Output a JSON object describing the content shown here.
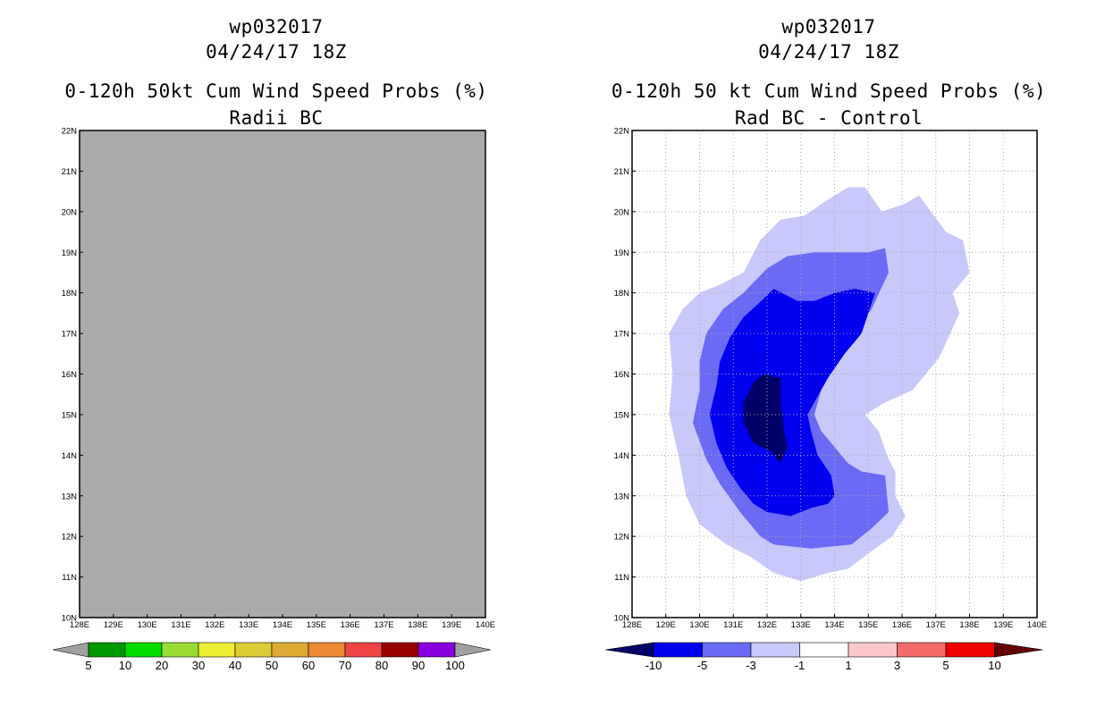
{
  "panels": {
    "left": {
      "storm_id": "wp032017",
      "datetime": "04/24/17 18Z",
      "title": "0-120h 50kt Cum Wind Speed Probs (%)",
      "subtitle": "Radii BC"
    },
    "right": {
      "storm_id": "wp032017",
      "datetime": "04/24/17 18Z",
      "title": "0-120h 50 kt Cum Wind Speed Probs (%)",
      "subtitle": "Rad BC - Control"
    }
  },
  "colors": {
    "left_fill": "#aaaaaa",
    "grid": "#aaaaaa",
    "diff_levels": [
      "#000066",
      "#0000ee",
      "#6a6af5",
      "#c8c8fa",
      "#ffffff",
      "#fac8c8",
      "#f56a6a",
      "#ee0000",
      "#660000"
    ]
  },
  "chart_data": [
    {
      "type": "heatmap",
      "name": "Radii BC cumulative 50kt wind speed probability",
      "title": "0-120h 50kt Cum Wind Speed Probs (%)",
      "subtitle": "Radii BC",
      "xlim": [
        128,
        140
      ],
      "ylim": [
        10,
        22
      ],
      "x_tick_labels": [
        "128E",
        "129E",
        "130E",
        "131E",
        "132E",
        "133E",
        "134E",
        "135E",
        "136E",
        "137E",
        "138E",
        "139E",
        "140E"
      ],
      "y_tick_labels": [
        "10N",
        "11N",
        "12N",
        "13N",
        "14N",
        "15N",
        "16N",
        "17N",
        "18N",
        "19N",
        "20N",
        "21N",
        "22N"
      ],
      "field": "undefined (uniform grey)",
      "grid": false,
      "colorbar": {
        "colors": [
          "#009900",
          "#00dd00",
          "#99dd33",
          "#eeee33",
          "#ddcc33",
          "#ddaa33",
          "#ee8833",
          "#ee4444",
          "#990000",
          "#8800dd"
        ],
        "end_colors": [
          "#a0a0a0",
          "#a0a0a0"
        ],
        "labels": [
          "5",
          "10",
          "20",
          "30",
          "40",
          "50",
          "60",
          "70",
          "80",
          "90",
          "100"
        ]
      }
    },
    {
      "type": "heatmap",
      "name": "Rad BC minus Control difference",
      "title": "0-120h 50 kt Cum Wind Speed Probs (%)",
      "subtitle": "Rad BC - Control",
      "xlim": [
        128,
        140
      ],
      "ylim": [
        10,
        22
      ],
      "x_tick_labels": [
        "128E",
        "129E",
        "130E",
        "131E",
        "132E",
        "133E",
        "134E",
        "135E",
        "136E",
        "137E",
        "138E",
        "139E",
        "140E"
      ],
      "y_tick_labels": [
        "10N",
        "11N",
        "12N",
        "13N",
        "14N",
        "15N",
        "16N",
        "17N",
        "18N",
        "19N",
        "20N",
        "21N",
        "22N"
      ],
      "grid": true,
      "contours": [
        {
          "level": "-1 to -3",
          "color": "#c8c8fa",
          "points": [
            [
              131.3,
              18.5
            ],
            [
              131.8,
              19.3
            ],
            [
              132.4,
              19.8
            ],
            [
              133.1,
              19.9
            ],
            [
              133.8,
              20.3
            ],
            [
              134.4,
              20.6
            ],
            [
              134.9,
              20.6
            ],
            [
              135.4,
              20.0
            ],
            [
              136.1,
              20.2
            ],
            [
              136.5,
              20.4
            ],
            [
              137.3,
              19.5
            ],
            [
              137.8,
              19.3
            ],
            [
              138.0,
              18.5
            ],
            [
              137.5,
              18.0
            ],
            [
              137.7,
              17.5
            ],
            [
              137.1,
              16.4
            ],
            [
              136.3,
              15.6
            ],
            [
              135.5,
              15.3
            ],
            [
              134.9,
              15.0
            ],
            [
              135.3,
              14.6
            ],
            [
              135.6,
              13.9
            ],
            [
              135.8,
              13.6
            ],
            [
              135.8,
              13.0
            ],
            [
              136.1,
              12.5
            ],
            [
              135.7,
              12.0
            ],
            [
              135.2,
              11.7
            ],
            [
              134.4,
              11.2
            ],
            [
              133.8,
              11.1
            ],
            [
              133.0,
              10.9
            ],
            [
              132.2,
              11.1
            ],
            [
              131.5,
              11.5
            ],
            [
              130.8,
              11.8
            ],
            [
              130.0,
              12.3
            ],
            [
              129.6,
              13.0
            ],
            [
              129.4,
              13.9
            ],
            [
              129.1,
              15.0
            ],
            [
              129.2,
              16.0
            ],
            [
              129.1,
              17.0
            ],
            [
              129.5,
              17.6
            ],
            [
              130.0,
              18.0
            ],
            [
              130.6,
              18.2
            ]
          ]
        },
        {
          "level": "-3 to -5",
          "color": "#6a6af5",
          "points": [
            [
              131.3,
              18.0
            ],
            [
              132.0,
              18.6
            ],
            [
              132.6,
              18.9
            ],
            [
              133.4,
              19.0
            ],
            [
              134.3,
              19.0
            ],
            [
              135.0,
              19.0
            ],
            [
              135.5,
              19.1
            ],
            [
              135.6,
              18.5
            ],
            [
              135.1,
              17.6
            ],
            [
              134.2,
              16.6
            ],
            [
              133.6,
              15.6
            ],
            [
              133.4,
              15.0
            ],
            [
              133.6,
              14.6
            ],
            [
              134.0,
              14.2
            ],
            [
              134.4,
              13.8
            ],
            [
              134.8,
              13.6
            ],
            [
              135.5,
              13.5
            ],
            [
              135.6,
              12.6
            ],
            [
              135.1,
              12.2
            ],
            [
              134.5,
              11.8
            ],
            [
              133.3,
              11.7
            ],
            [
              132.2,
              11.8
            ],
            [
              131.8,
              12.0
            ],
            [
              131.2,
              12.6
            ],
            [
              130.6,
              13.3
            ],
            [
              130.2,
              13.9
            ],
            [
              129.8,
              14.8
            ],
            [
              130.0,
              15.6
            ],
            [
              130.0,
              16.3
            ],
            [
              130.2,
              17.0
            ],
            [
              130.7,
              17.6
            ]
          ]
        },
        {
          "level": "-5 to -10",
          "color": "#0000ee",
          "points": [
            [
              131.3,
              17.4
            ],
            [
              131.7,
              17.7
            ],
            [
              132.2,
              18.1
            ],
            [
              132.9,
              17.8
            ],
            [
              133.4,
              17.8
            ],
            [
              134.0,
              18.0
            ],
            [
              134.6,
              18.1
            ],
            [
              135.2,
              18.0
            ],
            [
              134.8,
              17.0
            ],
            [
              134.3,
              16.5
            ],
            [
              133.8,
              15.9
            ],
            [
              133.2,
              15.0
            ],
            [
              133.3,
              14.6
            ],
            [
              133.5,
              14.0
            ],
            [
              133.9,
              13.5
            ],
            [
              134.0,
              13.0
            ],
            [
              133.8,
              12.8
            ],
            [
              133.3,
              12.7
            ],
            [
              132.7,
              12.5
            ],
            [
              132.0,
              12.6
            ],
            [
              131.6,
              12.8
            ],
            [
              131.2,
              13.2
            ],
            [
              130.8,
              13.7
            ],
            [
              130.5,
              14.3
            ],
            [
              130.3,
              15.0
            ],
            [
              130.5,
              15.7
            ],
            [
              130.6,
              16.3
            ],
            [
              130.9,
              16.9
            ]
          ]
        },
        {
          "level": "< -10",
          "color": "#000066",
          "points": [
            [
              131.6,
              15.8
            ],
            [
              131.9,
              16.0
            ],
            [
              132.4,
              15.9
            ],
            [
              132.4,
              15.3
            ],
            [
              132.5,
              14.6
            ],
            [
              132.6,
              14.2
            ],
            [
              132.4,
              13.8
            ],
            [
              132.1,
              14.1
            ],
            [
              131.6,
              14.3
            ],
            [
              131.3,
              14.8
            ],
            [
              131.3,
              15.3
            ]
          ]
        }
      ],
      "colorbar": {
        "colors": [
          "#0000ee",
          "#6a6af5",
          "#c8c8fa",
          "#ffffff",
          "#fac8c8",
          "#f56a6a",
          "#ee0000"
        ],
        "end_colors": [
          "#000066",
          "#660000"
        ],
        "labels": [
          "-10",
          "-5",
          "-3",
          "-1",
          "1",
          "3",
          "5",
          "10"
        ]
      }
    }
  ]
}
